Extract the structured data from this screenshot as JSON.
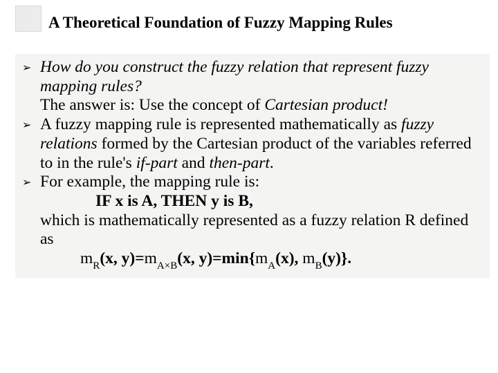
{
  "title": "A Theoretical Foundation of Fuzzy Mapping Rules",
  "bullet_glyph": "➢",
  "mu": "m",
  "bullets": [
    {
      "line1": "How do you construct the fuzzy relation that represent fuzzy mapping rules?",
      "line2a": "The answer is: Use the concept of ",
      "line2b": "Cartesian product!"
    },
    {
      "a": "A fuzzy mapping rule is represented mathematically as ",
      "b": "fuzzy relations",
      "c": " formed by the Cartesian product of the variables referred to in the rule's ",
      "d": "if-part",
      "e": " and ",
      "f": "then-part",
      "g": "."
    },
    {
      "intro": "For example, the mapping rule is:",
      "rule": "IF x is A, THEN y is B,",
      "which": "which is mathematically represented as a fuzzy relation R defined as",
      "sub_R": "R",
      "xy_eq": "(x, y)=",
      "sub_AxB": "A×B",
      "xy_min": "(x, y)=min{",
      "sub_A": "A",
      "x_comma": "(x), ",
      "sub_B": "B",
      "y_close": "(y)}."
    }
  ],
  "styling": {
    "slide_size": [
      720,
      540
    ],
    "background": "#ffffff",
    "content_background": "#f4f4f3",
    "title_decoration_bg": "#ececec",
    "title_decoration_border": "#d9d9d9",
    "font_family": "Times New Roman",
    "title_font_size_pt": 17,
    "body_font_size_pt": 18,
    "bullet_color": "#000000",
    "text_color": "#000000",
    "line_height": 1.18
  }
}
